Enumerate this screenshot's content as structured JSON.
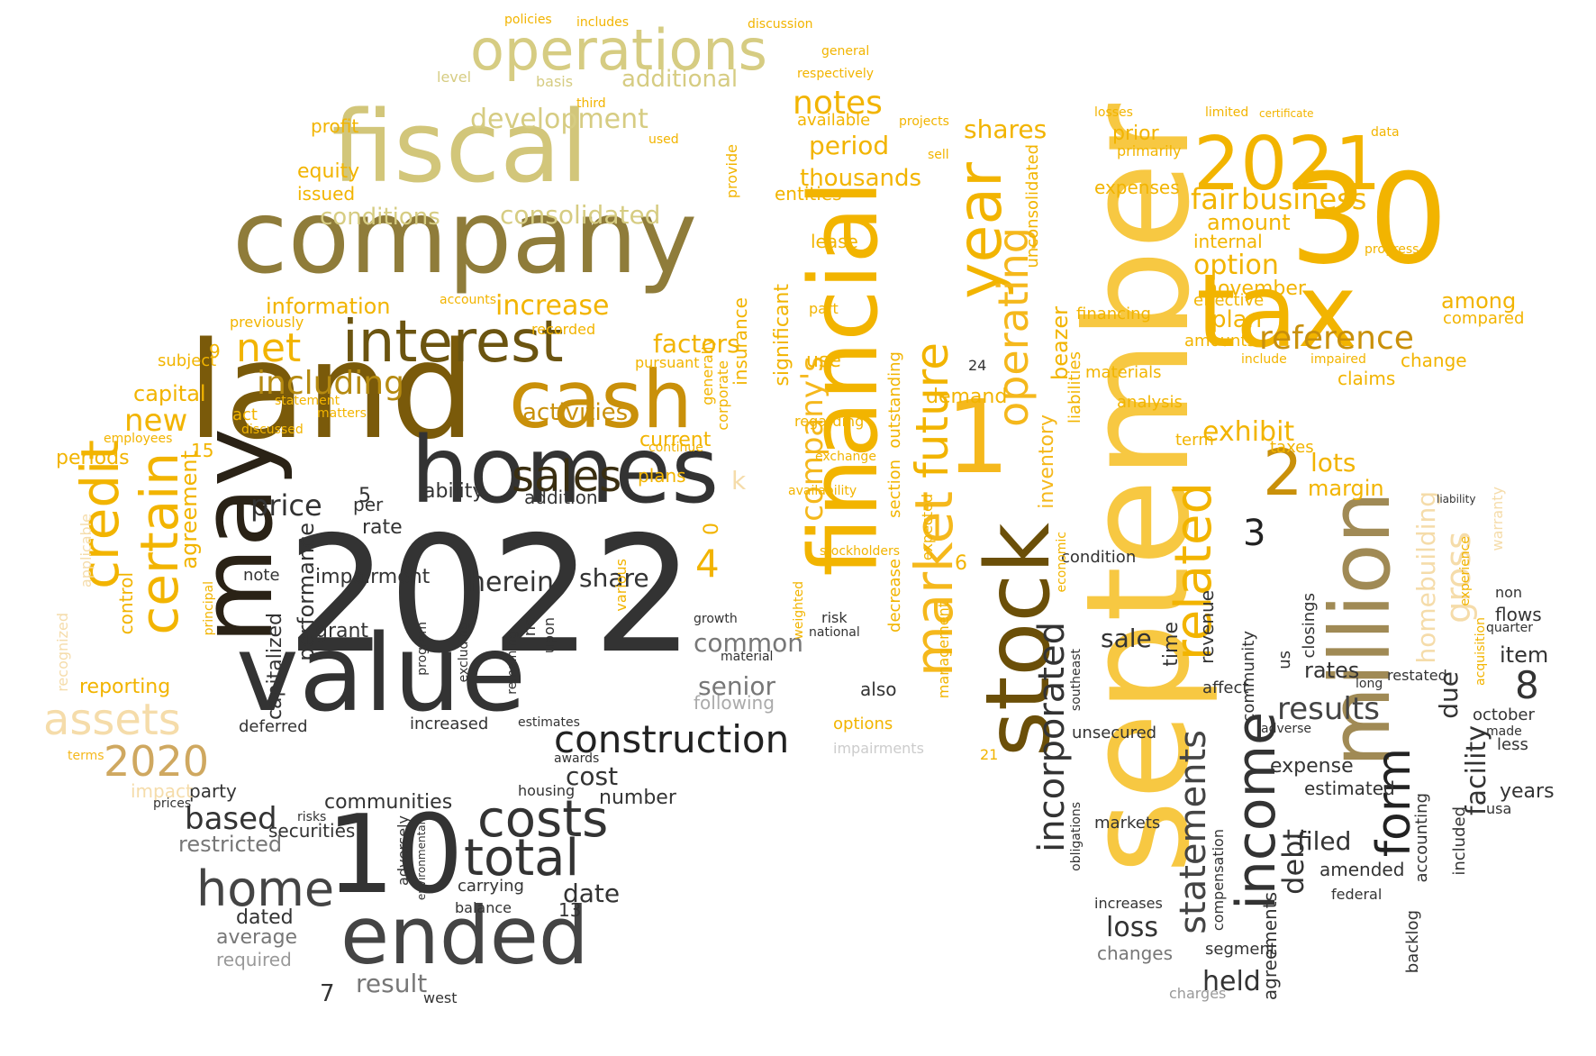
{
  "colors": {
    "background": "#ffffff",
    "gold": "#f2b400",
    "amber": "#f5b81c",
    "pale_gold": "#f0c84a",
    "khaki": "#d6cc82",
    "olive": "#9a8a4a",
    "bronze": "#8a6a10",
    "dark_brown": "#5a4308",
    "charcoal": "#333333",
    "black": "#111111",
    "gray": "#777777",
    "light_gray": "#bbbbbb",
    "tan": "#cfa860"
  },
  "words": [
    {
      "text": "2022",
      "color": "#333333"
    },
    {
      "text": "september",
      "color": "#f7c842"
    },
    {
      "text": "land",
      "color": "#7a5a0a"
    },
    {
      "text": "company",
      "color": "#8f7c3a"
    },
    {
      "text": "may",
      "color": "#2a2216"
    },
    {
      "text": "value",
      "color": "#333333"
    },
    {
      "text": "fiscal",
      "color": "#d2c67a"
    },
    {
      "text": "homes",
      "color": "#333333"
    },
    {
      "text": "financial",
      "color": "#f2b400"
    },
    {
      "text": "tax",
      "color": "#f2b400"
    },
    {
      "text": "30",
      "color": "#f2b400"
    },
    {
      "text": "stock",
      "color": "#6b4f08"
    },
    {
      "text": "1",
      "color": "#f5b81c"
    },
    {
      "text": "million",
      "color": "#a08a55"
    },
    {
      "text": "2021",
      "color": "#f2b400"
    },
    {
      "text": "10",
      "color": "#333333"
    },
    {
      "text": "ended",
      "color": "#444444"
    },
    {
      "text": "cash",
      "color": "#c9900a"
    },
    {
      "text": "interest",
      "color": "#6b5410"
    },
    {
      "text": "operations",
      "color": "#d6cc82"
    },
    {
      "text": "year",
      "color": "#f2b400"
    },
    {
      "text": "market",
      "color": "#f5b81c"
    },
    {
      "text": "future",
      "color": "#f2b400"
    },
    {
      "text": "operating",
      "color": "#f5b81c"
    },
    {
      "text": "income",
      "color": "#333333"
    },
    {
      "text": "related",
      "color": "#f2b400"
    },
    {
      "text": "form",
      "color": "#222222"
    },
    {
      "text": "costs",
      "color": "#333333"
    },
    {
      "text": "total",
      "color": "#333333"
    },
    {
      "text": "home",
      "color": "#444444"
    },
    {
      "text": "construction",
      "color": "#222222"
    },
    {
      "text": "credit",
      "color": "#f2b400"
    },
    {
      "text": "certain",
      "color": "#f2b400"
    },
    {
      "text": "assets",
      "color": "#f5dcaa"
    },
    {
      "text": "2020",
      "color": "#cfa860"
    },
    {
      "text": "sales",
      "color": "#3a2e10"
    },
    {
      "text": "net",
      "color": "#f2b400"
    },
    {
      "text": "including",
      "color": "#b58a10"
    },
    {
      "text": "incorporated",
      "color": "#333333"
    },
    {
      "text": "statements",
      "color": "#444444"
    },
    {
      "text": "2",
      "color": "#c9900a"
    },
    {
      "text": "reference",
      "color": "#c9900a"
    },
    {
      "text": "business",
      "color": "#f2b400"
    },
    {
      "text": "fair",
      "color": "#f2b400"
    },
    {
      "text": "notes",
      "color": "#f2b400"
    },
    {
      "text": "gross",
      "color": "#f5dcaa"
    },
    {
      "text": "homebuilding",
      "color": "#f5dcaa"
    },
    {
      "text": "results",
      "color": "#444444"
    },
    {
      "text": "price",
      "color": "#333333"
    },
    {
      "text": "based",
      "color": "#333333"
    },
    {
      "text": "herein",
      "color": "#333333"
    },
    {
      "text": "development",
      "color": "#d6cc82"
    },
    {
      "text": "consolidated",
      "color": "#d6cc82"
    },
    {
      "text": "conditions",
      "color": "#d6cc82"
    },
    {
      "text": "additional",
      "color": "#d6cc82"
    },
    {
      "text": "increase",
      "color": "#f2b400"
    },
    {
      "text": "information",
      "color": "#f2b400"
    },
    {
      "text": "factors",
      "color": "#f2b400"
    },
    {
      "text": "activities",
      "color": "#c9900a"
    },
    {
      "text": "capital",
      "color": "#f2b400"
    },
    {
      "text": "new",
      "color": "#f2b400"
    },
    {
      "text": "period",
      "color": "#f2b400"
    },
    {
      "text": "shares",
      "color": "#f2b400"
    },
    {
      "text": "thousands",
      "color": "#f2b400"
    },
    {
      "text": "company's",
      "color": "#f5b81c"
    },
    {
      "text": "option",
      "color": "#f2b400"
    },
    {
      "text": "exhibit",
      "color": "#f2b400"
    },
    {
      "text": "plan",
      "color": "#f2b400"
    },
    {
      "text": "lots",
      "color": "#f2b400"
    },
    {
      "text": "amount",
      "color": "#f2b400"
    },
    {
      "text": "november",
      "color": "#f2b400"
    },
    {
      "text": "margin",
      "color": "#f2b400"
    },
    {
      "text": "sale",
      "color": "#333333"
    },
    {
      "text": "loss",
      "color": "#333333"
    },
    {
      "text": "filed",
      "color": "#333333"
    },
    {
      "text": "held",
      "color": "#333333"
    },
    {
      "text": "debt",
      "color": "#333333"
    },
    {
      "text": "facility",
      "color": "#333333"
    },
    {
      "text": "due",
      "color": "#333333"
    },
    {
      "text": "8",
      "color": "#333333"
    },
    {
      "text": "4",
      "color": "#f2b400"
    },
    {
      "text": "3",
      "color": "#222222"
    },
    {
      "text": "senior",
      "color": "#777777"
    },
    {
      "text": "common",
      "color": "#777777"
    },
    {
      "text": "restricted",
      "color": "#777777"
    },
    {
      "text": "securities",
      "color": "#333333"
    },
    {
      "text": "communities",
      "color": "#333333"
    },
    {
      "text": "party",
      "color": "#333333"
    },
    {
      "text": "date",
      "color": "#333333"
    },
    {
      "text": "cost",
      "color": "#333333"
    },
    {
      "text": "number",
      "color": "#333333"
    },
    {
      "text": "result",
      "color": "#777777"
    },
    {
      "text": "average",
      "color": "#777777"
    },
    {
      "text": "required",
      "color": "#999999"
    },
    {
      "text": "dated",
      "color": "#333333"
    },
    {
      "text": "impairment",
      "color": "#333333"
    },
    {
      "text": "performance",
      "color": "#333333"
    },
    {
      "text": "capitalized",
      "color": "#333333"
    },
    {
      "text": "agreement",
      "color": "#f2b400"
    },
    {
      "text": "control",
      "color": "#f2b400"
    },
    {
      "text": "reporting",
      "color": "#f2b400"
    },
    {
      "text": "periods",
      "color": "#f2b400"
    },
    {
      "text": "impact",
      "color": "#f5dcaa"
    },
    {
      "text": "terms",
      "color": "#f5b81c"
    },
    {
      "text": "equity",
      "color": "#f2b400"
    },
    {
      "text": "issued",
      "color": "#f2b400"
    },
    {
      "text": "profit",
      "color": "#f2b400"
    },
    {
      "text": "ability",
      "color": "#333333"
    },
    {
      "text": "addition",
      "color": "#333333"
    },
    {
      "text": "share",
      "color": "#333333"
    },
    {
      "text": "rate",
      "color": "#333333"
    },
    {
      "text": "per",
      "color": "#333333"
    },
    {
      "text": "note",
      "color": "#333333"
    },
    {
      "text": "grant",
      "color": "#333333"
    },
    {
      "text": "current",
      "color": "#f2b400"
    },
    {
      "text": "plans",
      "color": "#f2b400"
    },
    {
      "text": "use",
      "color": "#f2b400"
    },
    {
      "text": "lease",
      "color": "#f2b400"
    },
    {
      "text": "entities",
      "color": "#f2b400"
    },
    {
      "text": "available",
      "color": "#f2b400"
    },
    {
      "text": "prior",
      "color": "#f2b400"
    },
    {
      "text": "expenses",
      "color": "#f2b400"
    },
    {
      "text": "internal",
      "color": "#f2b400"
    },
    {
      "text": "effective",
      "color": "#f2b400"
    },
    {
      "text": "amounts",
      "color": "#f2b400"
    },
    {
      "text": "among",
      "color": "#f2b400"
    },
    {
      "text": "compared",
      "color": "#f2b400"
    },
    {
      "text": "claims",
      "color": "#f2b400"
    },
    {
      "text": "change",
      "color": "#f2b400"
    },
    {
      "text": "demand",
      "color": "#f2b400"
    },
    {
      "text": "analysis",
      "color": "#f2b400"
    },
    {
      "text": "materials",
      "color": "#f2b400"
    },
    {
      "text": "financing",
      "color": "#f2b400"
    },
    {
      "text": "term",
      "color": "#f2b400"
    },
    {
      "text": "taxes",
      "color": "#f2b400"
    },
    {
      "text": "condition",
      "color": "#333333"
    },
    {
      "text": "expense",
      "color": "#333333"
    },
    {
      "text": "estimated",
      "color": "#333333"
    },
    {
      "text": "amended",
      "color": "#333333"
    },
    {
      "text": "rates",
      "color": "#333333"
    },
    {
      "text": "restated",
      "color": "#333333"
    },
    {
      "text": "unsecured",
      "color": "#333333"
    },
    {
      "text": "markets",
      "color": "#333333"
    },
    {
      "text": "increases",
      "color": "#333333"
    },
    {
      "text": "changes",
      "color": "#777777"
    },
    {
      "text": "charges",
      "color": "#999999"
    },
    {
      "text": "segment",
      "color": "#333333"
    },
    {
      "text": "federal",
      "color": "#333333"
    },
    {
      "text": "backlog",
      "color": "#333333"
    },
    {
      "text": "accounting",
      "color": "#333333"
    },
    {
      "text": "years",
      "color": "#333333"
    },
    {
      "text": "less",
      "color": "#333333"
    },
    {
      "text": "item",
      "color": "#333333"
    },
    {
      "text": "october",
      "color": "#333333"
    },
    {
      "text": "flows",
      "color": "#333333"
    },
    {
      "text": "quarter",
      "color": "#333333"
    },
    {
      "text": "non",
      "color": "#333333"
    },
    {
      "text": "warranty",
      "color": "#f5dcaa"
    },
    {
      "text": "acquisition",
      "color": "#f2b400"
    },
    {
      "text": "experience",
      "color": "#f2b400"
    },
    {
      "text": "included",
      "color": "#333333"
    },
    {
      "text": "usa",
      "color": "#333333"
    },
    {
      "text": "made",
      "color": "#333333"
    },
    {
      "text": "also",
      "color": "#333333"
    },
    {
      "text": "following",
      "color": "#aaaaaa"
    },
    {
      "text": "options",
      "color": "#f2b400"
    },
    {
      "text": "impairments",
      "color": "#cccccc"
    },
    {
      "text": "housing",
      "color": "#333333"
    },
    {
      "text": "awards",
      "color": "#333333"
    },
    {
      "text": "estimates",
      "color": "#333333"
    },
    {
      "text": "increased",
      "color": "#333333"
    },
    {
      "text": "deferred",
      "color": "#333333"
    },
    {
      "text": "balance",
      "color": "#333333"
    },
    {
      "text": "carrying",
      "color": "#333333"
    },
    {
      "text": "west",
      "color": "#333333"
    },
    {
      "text": "prices",
      "color": "#333333"
    },
    {
      "text": "risks",
      "color": "#333333"
    },
    {
      "text": "subject",
      "color": "#f2b400"
    },
    {
      "text": "act",
      "color": "#f2b400"
    },
    {
      "text": "discussed",
      "color": "#f2b400"
    },
    {
      "text": "employees",
      "color": "#f2b400"
    },
    {
      "text": "recognized",
      "color": "#f5dcaa"
    },
    {
      "text": "applicable",
      "color": "#f5dcaa"
    },
    {
      "text": "principal",
      "color": "#f2b400"
    },
    {
      "text": "previously",
      "color": "#f2b400"
    },
    {
      "text": "statement",
      "color": "#f2b400"
    },
    {
      "text": "matters",
      "color": "#f2b400"
    },
    {
      "text": "pursuant",
      "color": "#f2b400"
    },
    {
      "text": "insurance",
      "color": "#f2b400"
    },
    {
      "text": "corporate",
      "color": "#f2b400"
    },
    {
      "text": "generally",
      "color": "#f2b400"
    },
    {
      "text": "provide",
      "color": "#f2b400"
    },
    {
      "text": "continue",
      "color": "#f2b400"
    },
    {
      "text": "recorded",
      "color": "#f2b400"
    },
    {
      "text": "accounts",
      "color": "#f2b400"
    },
    {
      "text": "level",
      "color": "#d6cc82"
    },
    {
      "text": "basis",
      "color": "#d6cc82"
    },
    {
      "text": "respectively",
      "color": "#f2b400"
    },
    {
      "text": "general",
      "color": "#f2b400"
    },
    {
      "text": "discussion",
      "color": "#f2b400"
    },
    {
      "text": "policies",
      "color": "#f2b400"
    },
    {
      "text": "includes",
      "color": "#f2b400"
    },
    {
      "text": "used",
      "color": "#f2b400"
    },
    {
      "text": "third",
      "color": "#f2b400"
    },
    {
      "text": "projects",
      "color": "#f2b400"
    },
    {
      "text": "sell",
      "color": "#f2b400"
    },
    {
      "text": "losses",
      "color": "#f2b400"
    },
    {
      "text": "limited",
      "color": "#f2b400"
    },
    {
      "text": "certificate",
      "color": "#f2b400"
    },
    {
      "text": "primarily",
      "color": "#f2b400"
    },
    {
      "text": "data",
      "color": "#f2b400"
    },
    {
      "text": "progress",
      "color": "#f2b400"
    },
    {
      "text": "include",
      "color": "#f2b400"
    },
    {
      "text": "impaired",
      "color": "#f2b400"
    },
    {
      "text": "economic",
      "color": "#f2b400"
    },
    {
      "text": "inventory",
      "color": "#f5b81c"
    },
    {
      "text": "liabilities",
      "color": "#f2b400"
    },
    {
      "text": "beazer",
      "color": "#f2b400"
    },
    {
      "text": "unconsolidated",
      "color": "#f2b400"
    },
    {
      "text": "outstanding",
      "color": "#f2b400"
    },
    {
      "text": "section",
      "color": "#f2b400"
    },
    {
      "text": "decrease",
      "color": "#f2b400"
    },
    {
      "text": "management",
      "color": "#f2b400"
    },
    {
      "text": "expected",
      "color": "#f2b400"
    },
    {
      "text": "significant",
      "color": "#f2b400"
    },
    {
      "text": "part",
      "color": "#f2b400"
    },
    {
      "text": "regarding",
      "color": "#f2b400"
    },
    {
      "text": "exchange",
      "color": "#f2b400"
    },
    {
      "text": "availability",
      "color": "#f2b400"
    },
    {
      "text": "stockholders",
      "color": "#f2b400"
    },
    {
      "text": "weighted",
      "color": "#f2b400"
    },
    {
      "text": "risk",
      "color": "#333333"
    },
    {
      "text": "national",
      "color": "#333333"
    },
    {
      "text": "material",
      "color": "#333333"
    },
    {
      "text": "compensation",
      "color": "#333333"
    },
    {
      "text": "agreements",
      "color": "#333333"
    },
    {
      "text": "time",
      "color": "#333333"
    },
    {
      "text": "revenue",
      "color": "#333333"
    },
    {
      "text": "community",
      "color": "#333333"
    },
    {
      "text": "closings",
      "color": "#333333"
    },
    {
      "text": "us",
      "color": "#333333"
    },
    {
      "text": "southeast",
      "color": "#333333"
    },
    {
      "text": "obligations",
      "color": "#333333"
    },
    {
      "text": "affect",
      "color": "#333333"
    },
    {
      "text": "adverse",
      "color": "#333333"
    },
    {
      "text": "long",
      "color": "#333333"
    },
    {
      "text": "liability",
      "color": "#333333"
    },
    {
      "text": "upon",
      "color": "#333333"
    },
    {
      "text": "excluding",
      "color": "#333333"
    },
    {
      "text": "program",
      "color": "#333333"
    },
    {
      "text": "adversely",
      "color": "#333333"
    },
    {
      "text": "environmental",
      "color": "#333333"
    },
    {
      "text": "various",
      "color": "#f2b400"
    },
    {
      "text": "growth",
      "color": "#333333"
    },
    {
      "text": "inc",
      "color": "#333333"
    },
    {
      "text": "remaining",
      "color": "#333333"
    },
    {
      "text": "5",
      "color": "#333333"
    },
    {
      "text": "6",
      "color": "#f2b400"
    },
    {
      "text": "7",
      "color": "#333333"
    },
    {
      "text": "9",
      "color": "#f2b400"
    },
    {
      "text": "13",
      "color": "#333333"
    },
    {
      "text": "15",
      "color": "#f2b400"
    },
    {
      "text": "21",
      "color": "#f2b400"
    },
    {
      "text": "24",
      "color": "#333333"
    },
    {
      "text": "0",
      "color": "#f2b400"
    },
    {
      "text": "k",
      "color": "#f5dcaa"
    }
  ]
}
